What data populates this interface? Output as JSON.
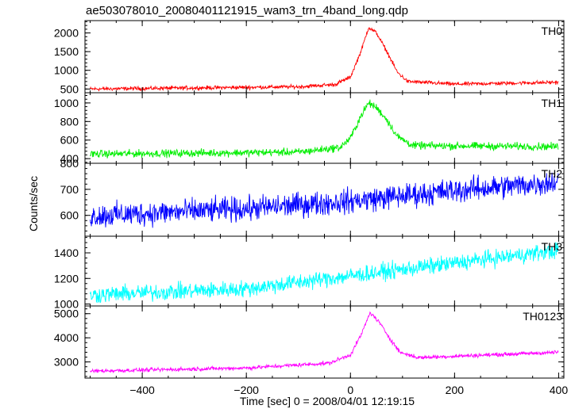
{
  "chart_data": {
    "type": "line",
    "title": "ae503078010_20080401121915_wam3_trn_4band_long.qdp",
    "xlabel": "Time [sec] 0 = 2008/04/01 12:19:15",
    "ylabel": "Counts/sec",
    "xlim": [
      -510,
      410
    ],
    "x_ticks": [
      -400,
      -200,
      0,
      200,
      400
    ],
    "x_tick_labels": [
      "−400",
      "−200",
      "0",
      "200",
      "400"
    ],
    "grid": false,
    "panels": [
      {
        "label": "TH0",
        "color": "#ff0000",
        "ylim": [
          400,
          2330
        ],
        "y_ticks": [
          500,
          1000,
          1500,
          2000
        ],
        "y_tick_labels": [
          "500",
          "1000",
          "1500",
          "2000"
        ],
        "profile": [
          [
            -500,
            500
          ],
          [
            -300,
            530
          ],
          [
            -100,
            560
          ],
          [
            -30,
            620
          ],
          [
            0,
            820
          ],
          [
            20,
            1500
          ],
          [
            35,
            2150
          ],
          [
            50,
            2000
          ],
          [
            70,
            1500
          ],
          [
            90,
            950
          ],
          [
            110,
            700
          ],
          [
            200,
            630
          ],
          [
            400,
            680
          ]
        ],
        "noise": 45
      },
      {
        "label": "TH1",
        "color": "#00ee00",
        "ylim": [
          350,
          1110
        ],
        "y_ticks": [
          400,
          600,
          800,
          1000
        ],
        "y_tick_labels": [
          "400",
          "600",
          "800",
          "1000"
        ],
        "profile": [
          [
            -500,
            450
          ],
          [
            -100,
            470
          ],
          [
            -20,
            520
          ],
          [
            0,
            620
          ],
          [
            20,
            860
          ],
          [
            35,
            1000
          ],
          [
            50,
            950
          ],
          [
            70,
            820
          ],
          [
            90,
            640
          ],
          [
            120,
            540
          ],
          [
            400,
            530
          ]
        ],
        "noise": 35
      },
      {
        "label": "TH2",
        "color": "#0000ff",
        "ylim": [
          520,
          800
        ],
        "y_ticks": [
          600,
          700,
          800
        ],
        "y_tick_labels": [
          "600",
          "700",
          "800"
        ],
        "profile": [
          [
            -500,
            598
          ],
          [
            -200,
            625
          ],
          [
            0,
            655
          ],
          [
            200,
            695
          ],
          [
            400,
            728
          ]
        ],
        "noise": 40
      },
      {
        "label": "TH3",
        "color": "#00ffff",
        "ylim": [
          985,
          1530
        ],
        "y_ticks": [
          1000,
          1200,
          1400
        ],
        "y_tick_labels": [
          "1000",
          "1200",
          "1400"
        ],
        "profile": [
          [
            -500,
            1070
          ],
          [
            -200,
            1120
          ],
          [
            0,
            1220
          ],
          [
            200,
            1320
          ],
          [
            400,
            1420
          ]
        ],
        "noise": 55
      },
      {
        "label": "TH0123",
        "color": "#ff00ff",
        "ylim": [
          2330,
          5320
        ],
        "y_ticks": [
          3000,
          4000,
          5000
        ],
        "y_tick_labels": [
          "3000",
          "4000",
          "5000"
        ],
        "profile": [
          [
            -500,
            2620
          ],
          [
            -200,
            2750
          ],
          [
            -40,
            2950
          ],
          [
            0,
            3300
          ],
          [
            20,
            4100
          ],
          [
            38,
            5050
          ],
          [
            55,
            4650
          ],
          [
            75,
            4000
          ],
          [
            95,
            3400
          ],
          [
            130,
            3180
          ],
          [
            400,
            3400
          ]
        ],
        "noise": 70
      }
    ]
  }
}
